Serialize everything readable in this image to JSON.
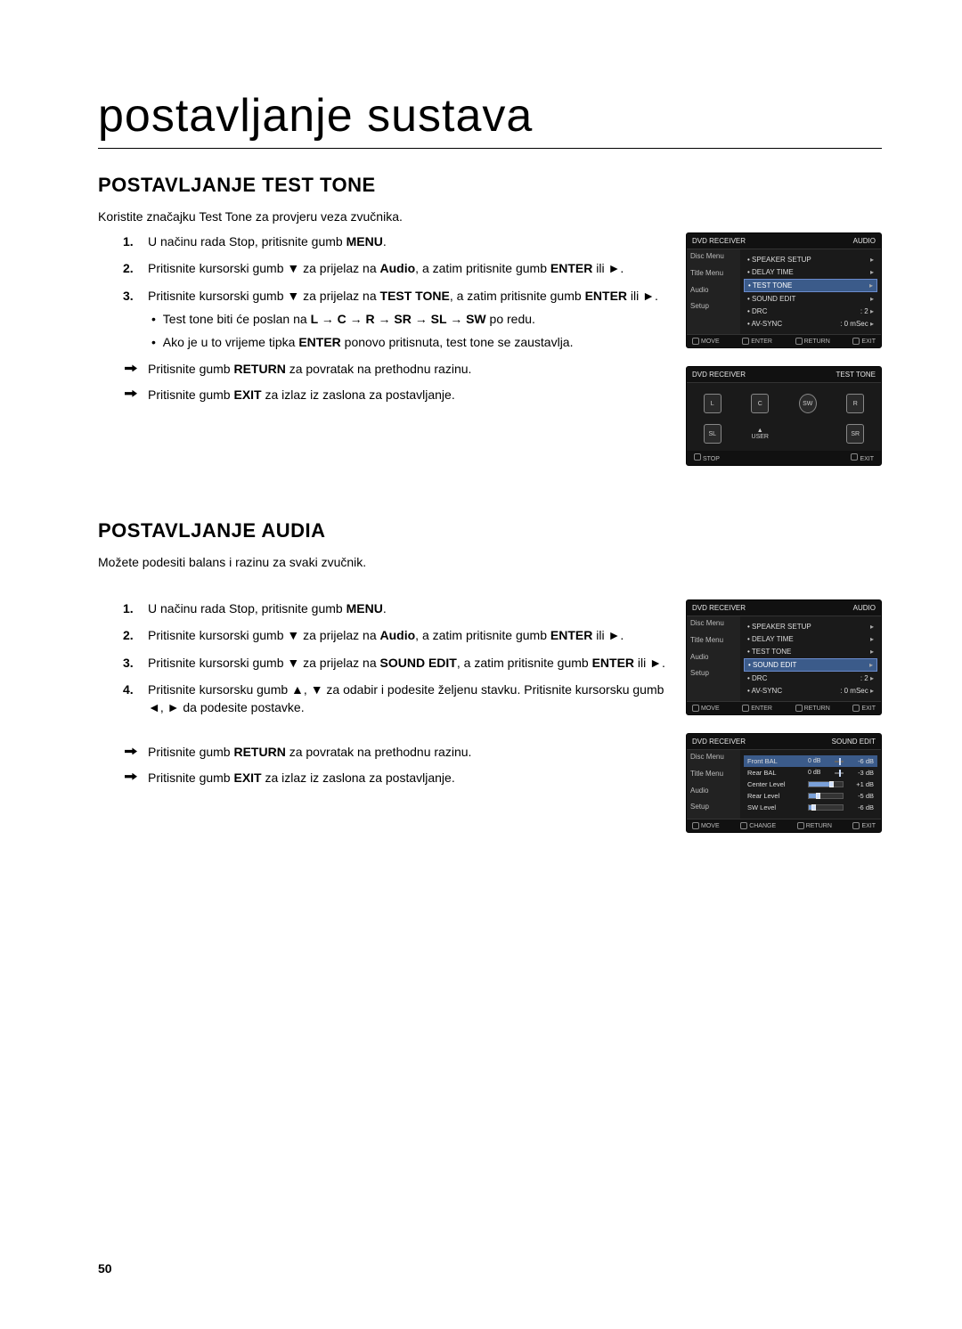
{
  "page": {
    "title": "postavljanje sustava",
    "number": "50"
  },
  "section1": {
    "heading": "POSTAVLJANJE TEST TONE",
    "intro": "Koristite značajku Test Tone za provjeru veza zvučnika.",
    "step1_a": "U načinu rada Stop, pritisnite gumb ",
    "step1_b": "MENU",
    "step1_c": ".",
    "step2_a": "Pritisnite kursorski gumb ▼ za prijelaz na ",
    "step2_b": "Audio",
    "step2_c": ", a zatim pritisnite gumb ",
    "step2_d": "ENTER",
    "step2_e": " ili ►.",
    "step3_a": "Pritisnite kursorski gumb ▼ za prijelaz na ",
    "step3_b": "TEST TONE",
    "step3_c": ", a zatim pritisnite gumb ",
    "step3_d": "ENTER",
    "step3_e": " ili ►.",
    "sub1_a": "Test tone biti će poslan na ",
    "sub1_b": "L → C → R → SR → SL → SW",
    "sub1_c": " po redu.",
    "sub2_a": "Ako je u to vrijeme tipka ",
    "sub2_b": "ENTER",
    "sub2_c": " ponovo pritisnuta, test tone se zaustavlja.",
    "ret_a": "Pritisnite gumb ",
    "ret_b": "RETURN",
    "ret_c": " za povratak na prethodnu razinu.",
    "exit_a": "Pritisnite gumb ",
    "exit_b": "EXIT",
    "exit_c": " za izlaz iz zaslona za postavljanje."
  },
  "section2": {
    "heading": "POSTAVLJANJE AUDIA",
    "intro": "Možete podesiti balans i razinu za svaki zvučnik.",
    "step1_a": "U načinu rada Stop, pritisnite gumb ",
    "step1_b": "MENU",
    "step1_c": ".",
    "step2_a": "Pritisnite kursorski gumb ▼ za prijelaz na ",
    "step2_b": "Audio",
    "step2_c": ", a zatim pritisnite gumb ",
    "step2_d": "ENTER",
    "step2_e": " ili ►.",
    "step3_a": "Pritisnite kursorski gumb ▼ za prijelaz na ",
    "step3_b": "SOUND EDIT",
    "step3_c": ", a zatim pritisnite gumb ",
    "step3_d": "ENTER",
    "step3_e": " ili ►.",
    "step4": "Pritisnite kursorsku gumb ▲, ▼ za odabir i podesite željenu stavku. Pritisnite kursorsku gumb ◄, ► da podesite postavke.",
    "ret_a": "Pritisnite gumb ",
    "ret_b": "RETURN",
    "ret_c": " za povratak na prethodnu razinu.",
    "exit_a": "Pritisnite gumb ",
    "exit_b": "EXIT",
    "exit_c": " za izlaz iz zaslona za postavljanje."
  },
  "osd1": {
    "device": "DVD RECEIVER",
    "title": "AUDIO",
    "side": [
      "Disc Menu",
      "Title Menu",
      "Audio",
      "Setup"
    ],
    "items": [
      {
        "label": "SPEAKER SETUP",
        "val": ""
      },
      {
        "label": "DELAY TIME",
        "val": ""
      },
      {
        "label": "TEST TONE",
        "val": "",
        "sel": true
      },
      {
        "label": "SOUND EDIT",
        "val": ""
      },
      {
        "label": "DRC",
        "val": ": 2"
      },
      {
        "label": "AV-SYNC",
        "val": ": 0 mSec"
      }
    ],
    "footer": [
      "MOVE",
      "ENTER",
      "RETURN",
      "EXIT"
    ]
  },
  "osd2": {
    "device": "DVD RECEIVER",
    "title": "TEST TONE",
    "speakers": [
      "L",
      "C",
      "SW",
      "R",
      "SL",
      "USER",
      "SR"
    ],
    "footer": [
      "STOP",
      "EXIT"
    ]
  },
  "osd3": {
    "device": "DVD RECEIVER",
    "title": "AUDIO",
    "side": [
      "Disc Menu",
      "Title Menu",
      "Audio",
      "Setup"
    ],
    "items": [
      {
        "label": "SPEAKER SETUP",
        "val": ""
      },
      {
        "label": "DELAY TIME",
        "val": ""
      },
      {
        "label": "TEST TONE",
        "val": ""
      },
      {
        "label": "SOUND EDIT",
        "val": "",
        "sel": true
      },
      {
        "label": "DRC",
        "val": ": 2"
      },
      {
        "label": "AV-SYNC",
        "val": ": 0 mSec"
      }
    ],
    "footer": [
      "MOVE",
      "ENTER",
      "RETURN",
      "EXIT"
    ]
  },
  "osd4": {
    "device": "DVD RECEIVER",
    "title": "SOUND EDIT",
    "side": [
      "Disc Menu",
      "Title Menu",
      "Audio",
      "Setup"
    ],
    "rows": [
      {
        "label": "Front BAL",
        "mid": "0 dB",
        "val": "-6 dB",
        "type": "bal",
        "pos": 50,
        "sel": true
      },
      {
        "label": "Rear BAL",
        "mid": "0 dB",
        "val": "-3 dB",
        "type": "bal",
        "pos": 50
      },
      {
        "label": "Center Level",
        "val": "+1 dB",
        "type": "lvl",
        "fill": 60
      },
      {
        "label": "Rear Level",
        "val": "-5 dB",
        "type": "lvl",
        "fill": 20
      },
      {
        "label": "SW Level",
        "val": "-6 dB",
        "type": "lvl",
        "fill": 8
      }
    ],
    "footer": [
      "MOVE",
      "CHANGE",
      "RETURN",
      "EXIT"
    ]
  }
}
